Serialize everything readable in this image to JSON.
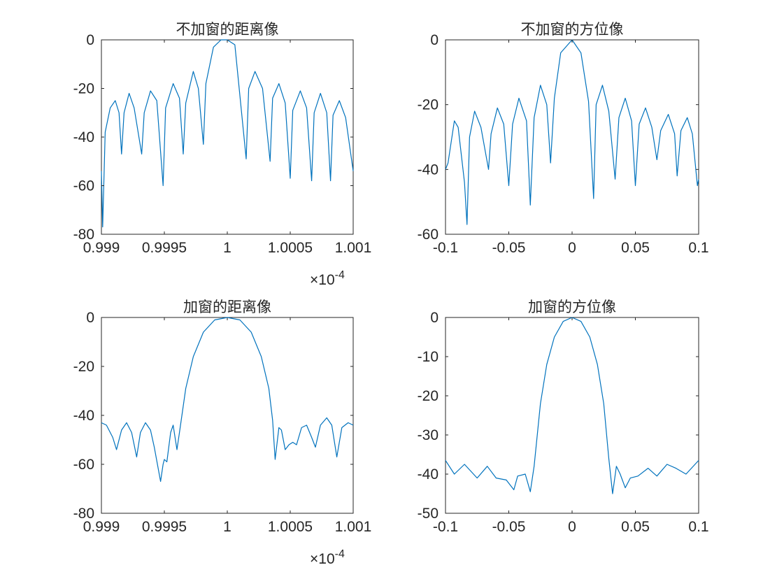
{
  "figure": {
    "background": "#ffffff",
    "line_color": "#0072bd",
    "axis_color": "#262626"
  },
  "chart_data": [
    {
      "type": "line",
      "title": "不加窗的距离像",
      "xlabel": "",
      "ylabel": "",
      "xlim": [
        0.999,
        1.001
      ],
      "ylim": [
        -80,
        0
      ],
      "xticks": [
        0.999,
        0.9995,
        1,
        1.0005,
        1.001
      ],
      "xtick_labels": [
        "0.999",
        "0.9995",
        "1",
        "1.0005",
        "1.001"
      ],
      "yticks": [
        0,
        -20,
        -40,
        -60,
        -80
      ],
      "ytick_labels": [
        "0",
        "-20",
        "-40",
        "-60",
        "-80"
      ],
      "x_exponent": {
        "base": "×10",
        "power": "-4"
      },
      "grid": false,
      "series": [
        {
          "values": [
            [
              0.999,
              -54
            ],
            [
              0.99901,
              -77
            ],
            [
              0.99903,
              -38
            ],
            [
              0.99907,
              -28
            ],
            [
              0.99911,
              -25
            ],
            [
              0.99914,
              -30
            ],
            [
              0.99916,
              -47
            ],
            [
              0.99918,
              -30
            ],
            [
              0.99922,
              -22
            ],
            [
              0.99926,
              -28
            ],
            [
              0.99932,
              -47
            ],
            [
              0.99934,
              -30
            ],
            [
              0.99939,
              -21
            ],
            [
              0.99944,
              -25
            ],
            [
              0.99949,
              -60
            ],
            [
              0.99951,
              -28
            ],
            [
              0.99957,
              -18
            ],
            [
              0.99962,
              -24
            ],
            [
              0.99965,
              -47
            ],
            [
              0.99967,
              -26
            ],
            [
              0.99973,
              -13
            ],
            [
              0.99977,
              -20
            ],
            [
              0.99981,
              -43
            ],
            [
              0.99983,
              -18
            ],
            [
              0.99989,
              -3
            ],
            [
              0.99995,
              0
            ],
            [
              1.0,
              0
            ],
            [
              1.00006,
              -2
            ],
            [
              1.00015,
              -49
            ],
            [
              1.00017,
              -20
            ],
            [
              1.00022,
              -13
            ],
            [
              1.00028,
              -20
            ],
            [
              1.00034,
              -50
            ],
            [
              1.00036,
              -24
            ],
            [
              1.00041,
              -18
            ],
            [
              1.00046,
              -26
            ],
            [
              1.0005,
              -57
            ],
            [
              1.00052,
              -29
            ],
            [
              1.00058,
              -21
            ],
            [
              1.00063,
              -28
            ],
            [
              1.00067,
              -58
            ],
            [
              1.00069,
              -30
            ],
            [
              1.00074,
              -22
            ],
            [
              1.00079,
              -30
            ],
            [
              1.00082,
              -58
            ],
            [
              1.00084,
              -31
            ],
            [
              1.00089,
              -25
            ],
            [
              1.00094,
              -32
            ],
            [
              1.001,
              -54
            ]
          ]
        }
      ]
    },
    {
      "type": "line",
      "title": "不加窗的方位像",
      "xlabel": "",
      "ylabel": "",
      "xlim": [
        -0.1,
        0.1
      ],
      "ylim": [
        -60,
        0
      ],
      "xticks": [
        -0.1,
        -0.05,
        0,
        0.05,
        0.1
      ],
      "xtick_labels": [
        "-0.1",
        "-0.05",
        "0",
        "0.05",
        "0.1"
      ],
      "yticks": [
        0,
        -20,
        -40,
        -60
      ],
      "ytick_labels": [
        "0",
        "-20",
        "-40",
        "-60"
      ],
      "grid": false,
      "series": [
        {
          "values": [
            [
              -0.1,
              -40
            ],
            [
              -0.098,
              -38
            ],
            [
              -0.093,
              -25
            ],
            [
              -0.09,
              -27
            ],
            [
              -0.085,
              -44
            ],
            [
              -0.083,
              -57
            ],
            [
              -0.081,
              -30
            ],
            [
              -0.077,
              -22
            ],
            [
              -0.072,
              -27
            ],
            [
              -0.066,
              -40
            ],
            [
              -0.064,
              -29
            ],
            [
              -0.059,
              -21
            ],
            [
              -0.054,
              -26
            ],
            [
              -0.05,
              -45
            ],
            [
              -0.047,
              -26
            ],
            [
              -0.042,
              -18
            ],
            [
              -0.036,
              -25
            ],
            [
              -0.033,
              -51
            ],
            [
              -0.03,
              -24
            ],
            [
              -0.025,
              -14
            ],
            [
              -0.02,
              -20
            ],
            [
              -0.017,
              -38
            ],
            [
              -0.014,
              -18
            ],
            [
              -0.009,
              -4
            ],
            [
              0.0,
              0
            ],
            [
              0.007,
              -4
            ],
            [
              0.013,
              -19
            ],
            [
              0.017,
              -49
            ],
            [
              0.019,
              -20
            ],
            [
              0.024,
              -14
            ],
            [
              0.029,
              -22
            ],
            [
              0.034,
              -43
            ],
            [
              0.037,
              -24
            ],
            [
              0.042,
              -18
            ],
            [
              0.047,
              -25
            ],
            [
              0.05,
              -45
            ],
            [
              0.053,
              -26
            ],
            [
              0.058,
              -21
            ],
            [
              0.063,
              -27
            ],
            [
              0.067,
              -37
            ],
            [
              0.07,
              -28
            ],
            [
              0.076,
              -23
            ],
            [
              0.081,
              -29
            ],
            [
              0.083,
              -42
            ],
            [
              0.086,
              -28
            ],
            [
              0.091,
              -24
            ],
            [
              0.095,
              -29
            ],
            [
              0.099,
              -45
            ],
            [
              0.1,
              -43
            ]
          ]
        }
      ]
    },
    {
      "type": "line",
      "title": "加窗的距离像",
      "xlabel": "",
      "ylabel": "",
      "xlim": [
        0.999,
        1.001
      ],
      "ylim": [
        -80,
        0
      ],
      "xticks": [
        0.999,
        0.9995,
        1,
        1.0005,
        1.001
      ],
      "xtick_labels": [
        "0.999",
        "0.9995",
        "1",
        "1.0005",
        "1.001"
      ],
      "yticks": [
        0,
        -20,
        -40,
        -60,
        -80
      ],
      "ytick_labels": [
        "0",
        "-20",
        "-40",
        "-60",
        "-80"
      ],
      "x_exponent": {
        "base": "×10",
        "power": "-4"
      },
      "grid": false,
      "series": [
        {
          "values": [
            [
              0.999,
              -43
            ],
            [
              0.99904,
              -44
            ],
            [
              0.99909,
              -49
            ],
            [
              0.99912,
              -54
            ],
            [
              0.99916,
              -46
            ],
            [
              0.9992,
              -43
            ],
            [
              0.99924,
              -47
            ],
            [
              0.99928,
              -57
            ],
            [
              0.99931,
              -47
            ],
            [
              0.99935,
              -43
            ],
            [
              0.99939,
              -46
            ],
            [
              0.99942,
              -53
            ],
            [
              0.99947,
              -67
            ],
            [
              0.99949,
              -60
            ],
            [
              0.9995,
              -58
            ],
            [
              0.99952,
              -59
            ],
            [
              0.99955,
              -47
            ],
            [
              0.99957,
              -44
            ],
            [
              0.9996,
              -54
            ],
            [
              0.99962,
              -47
            ],
            [
              0.99967,
              -29
            ],
            [
              0.99973,
              -16
            ],
            [
              0.99981,
              -6
            ],
            [
              0.9999,
              -1
            ],
            [
              1.0,
              0
            ],
            [
              1.0001,
              -1
            ],
            [
              1.00019,
              -6
            ],
            [
              1.00027,
              -16
            ],
            [
              1.00033,
              -29
            ],
            [
              1.00036,
              -42
            ],
            [
              1.00038,
              -58
            ],
            [
              1.00041,
              -45
            ],
            [
              1.00043,
              -46
            ],
            [
              1.00046,
              -54
            ],
            [
              1.00049,
              -52
            ],
            [
              1.00052,
              -51
            ],
            [
              1.00055,
              -52
            ],
            [
              1.00059,
              -45
            ],
            [
              1.00063,
              -44
            ],
            [
              1.00067,
              -49
            ],
            [
              1.0007,
              -53
            ],
            [
              1.00074,
              -44
            ],
            [
              1.00079,
              -41
            ],
            [
              1.00083,
              -44
            ],
            [
              1.00087,
              -57
            ],
            [
              1.00091,
              -45
            ],
            [
              1.00096,
              -43
            ],
            [
              1.001,
              -44
            ]
          ]
        }
      ]
    },
    {
      "type": "line",
      "title": "加窗的方位像",
      "xlabel": "",
      "ylabel": "",
      "xlim": [
        -0.1,
        0.1
      ],
      "ylim": [
        -50,
        0
      ],
      "xticks": [
        -0.1,
        -0.05,
        0,
        0.05,
        0.1
      ],
      "xtick_labels": [
        "-0.1",
        "-0.05",
        "0",
        "0.05",
        "0.1"
      ],
      "yticks": [
        0,
        -10,
        -20,
        -30,
        -40,
        -50
      ],
      "ytick_labels": [
        "0",
        "-10",
        "-20",
        "-30",
        "-40",
        "-50"
      ],
      "grid": false,
      "series": [
        {
          "values": [
            [
              -0.1,
              -36.5
            ],
            [
              -0.093,
              -40
            ],
            [
              -0.085,
              -37.5
            ],
            [
              -0.075,
              -41
            ],
            [
              -0.067,
              -38
            ],
            [
              -0.06,
              -41
            ],
            [
              -0.052,
              -41.5
            ],
            [
              -0.046,
              -44
            ],
            [
              -0.043,
              -40.5
            ],
            [
              -0.037,
              -40
            ],
            [
              -0.033,
              -44.5
            ],
            [
              -0.03,
              -38
            ],
            [
              -0.025,
              -22
            ],
            [
              -0.02,
              -12
            ],
            [
              -0.014,
              -5
            ],
            [
              -0.007,
              -1
            ],
            [
              0.0,
              0
            ],
            [
              0.007,
              -1
            ],
            [
              0.014,
              -5
            ],
            [
              0.02,
              -12
            ],
            [
              0.025,
              -22
            ],
            [
              0.029,
              -36
            ],
            [
              0.032,
              -45
            ],
            [
              0.035,
              -38
            ],
            [
              0.038,
              -40
            ],
            [
              0.042,
              -43.5
            ],
            [
              0.046,
              -41
            ],
            [
              0.052,
              -40.5
            ],
            [
              0.06,
              -38.5
            ],
            [
              0.067,
              -40.5
            ],
            [
              0.075,
              -37.5
            ],
            [
              0.082,
              -38.5
            ],
            [
              0.09,
              -40
            ],
            [
              0.1,
              -36.5
            ]
          ]
        }
      ]
    }
  ]
}
